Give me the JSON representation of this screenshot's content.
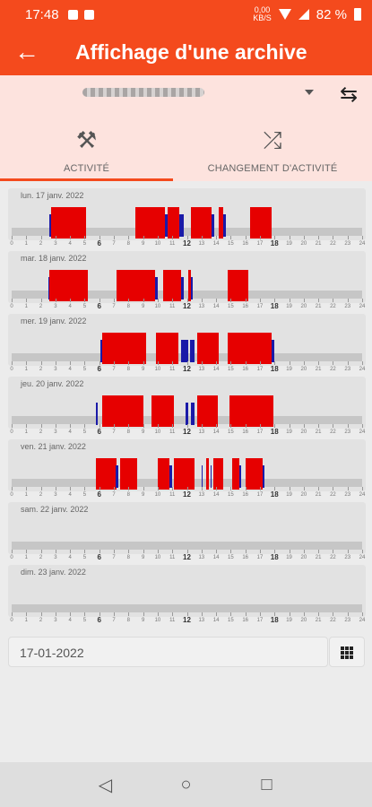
{
  "status_bar": {
    "time": "17:48",
    "net_top": "0,00",
    "net_bottom": "KB/S",
    "battery": "82 %"
  },
  "app_bar": {
    "title": "Affichage d'une archive",
    "back_icon": "arrow-left-icon"
  },
  "device_row": {
    "swap_icon": "swap-horizontal-icon",
    "dropdown_icon": "chevron-down-icon"
  },
  "tabs": [
    {
      "label": "ACTIVITÉ",
      "icon": "activity-symbols-icon",
      "selected": true
    },
    {
      "label": "CHANGEMENT D'ACTIVITÉ",
      "icon": "shuffle-icon",
      "selected": false
    }
  ],
  "timeline_axis": {
    "hours": [
      0,
      1,
      2,
      3,
      4,
      5,
      6,
      7,
      8,
      9,
      10,
      11,
      12,
      13,
      14,
      15,
      16,
      17,
      18,
      19,
      20,
      21,
      22,
      23,
      24
    ],
    "emphasized_hours": [
      6,
      12,
      18
    ]
  },
  "days": [
    {
      "label": "lun. 17 janv. 2022",
      "red": [
        [
          2.7,
          5.1
        ],
        [
          8.5,
          10.5
        ],
        [
          10.7,
          11.5
        ],
        [
          12.3,
          13.7
        ],
        [
          14.2,
          14.5
        ],
        [
          16.3,
          17.8
        ]
      ],
      "blue": [
        [
          2.6,
          2.7
        ],
        [
          10.5,
          10.7
        ],
        [
          11.5,
          11.8
        ],
        [
          13.7,
          13.9
        ],
        [
          14.5,
          14.7
        ]
      ]
    },
    {
      "label": "mar. 18 janv. 2022",
      "red": [
        [
          2.6,
          5.2
        ],
        [
          7.2,
          9.8
        ],
        [
          10.4,
          11.6
        ],
        [
          12.1,
          12.3
        ],
        [
          14.8,
          16.2
        ]
      ],
      "blue": [
        [
          2.5,
          2.6
        ],
        [
          9.8,
          10.0
        ],
        [
          11.6,
          11.8
        ],
        [
          12.3,
          12.4
        ]
      ]
    },
    {
      "label": "mer. 19 janv. 2022",
      "red": [
        [
          6.2,
          9.2
        ],
        [
          9.9,
          11.4
        ],
        [
          12.7,
          14.2
        ],
        [
          14.8,
          17.8
        ]
      ],
      "blue": [
        [
          6.1,
          6.2
        ],
        [
          11.6,
          12.1
        ],
        [
          12.2,
          12.5
        ],
        [
          17.8,
          18.0
        ]
      ]
    },
    {
      "label": "jeu. 20 janv. 2022",
      "red": [
        [
          6.2,
          9.0
        ],
        [
          9.6,
          11.1
        ],
        [
          12.7,
          14.1
        ],
        [
          14.9,
          17.9
        ]
      ],
      "blue": [
        [
          5.8,
          5.9
        ],
        [
          11.9,
          12.1
        ],
        [
          12.3,
          12.5
        ]
      ]
    },
    {
      "label": "ven. 21 janv. 2022",
      "red": [
        [
          5.8,
          7.2
        ],
        [
          7.4,
          8.6
        ],
        [
          10.0,
          10.8
        ],
        [
          11.1,
          12.5
        ],
        [
          13.3,
          13.5
        ],
        [
          13.8,
          14.5
        ],
        [
          15.1,
          15.6
        ],
        [
          16.0,
          17.2
        ]
      ],
      "blue": [
        [
          7.1,
          7.3
        ],
        [
          10.8,
          11.0
        ],
        [
          13.0,
          13.1
        ],
        [
          13.6,
          13.7
        ],
        [
          15.6,
          15.7
        ],
        [
          17.2,
          17.3
        ]
      ]
    },
    {
      "label": "sam. 22 janv. 2022",
      "red": [],
      "blue": []
    },
    {
      "label": "dim. 23 janv. 2022",
      "red": [],
      "blue": []
    }
  ],
  "date_field": {
    "value": "17-01-2022"
  },
  "calendar_button": {
    "icon": "grid-icon"
  },
  "nav_bar": {
    "back": "◁",
    "home": "○",
    "recents": "□"
  },
  "colors": {
    "accent": "#f44a1d",
    "header_tint": "#fde3de",
    "driving": "#e60000",
    "other": "#1a1aa8"
  }
}
